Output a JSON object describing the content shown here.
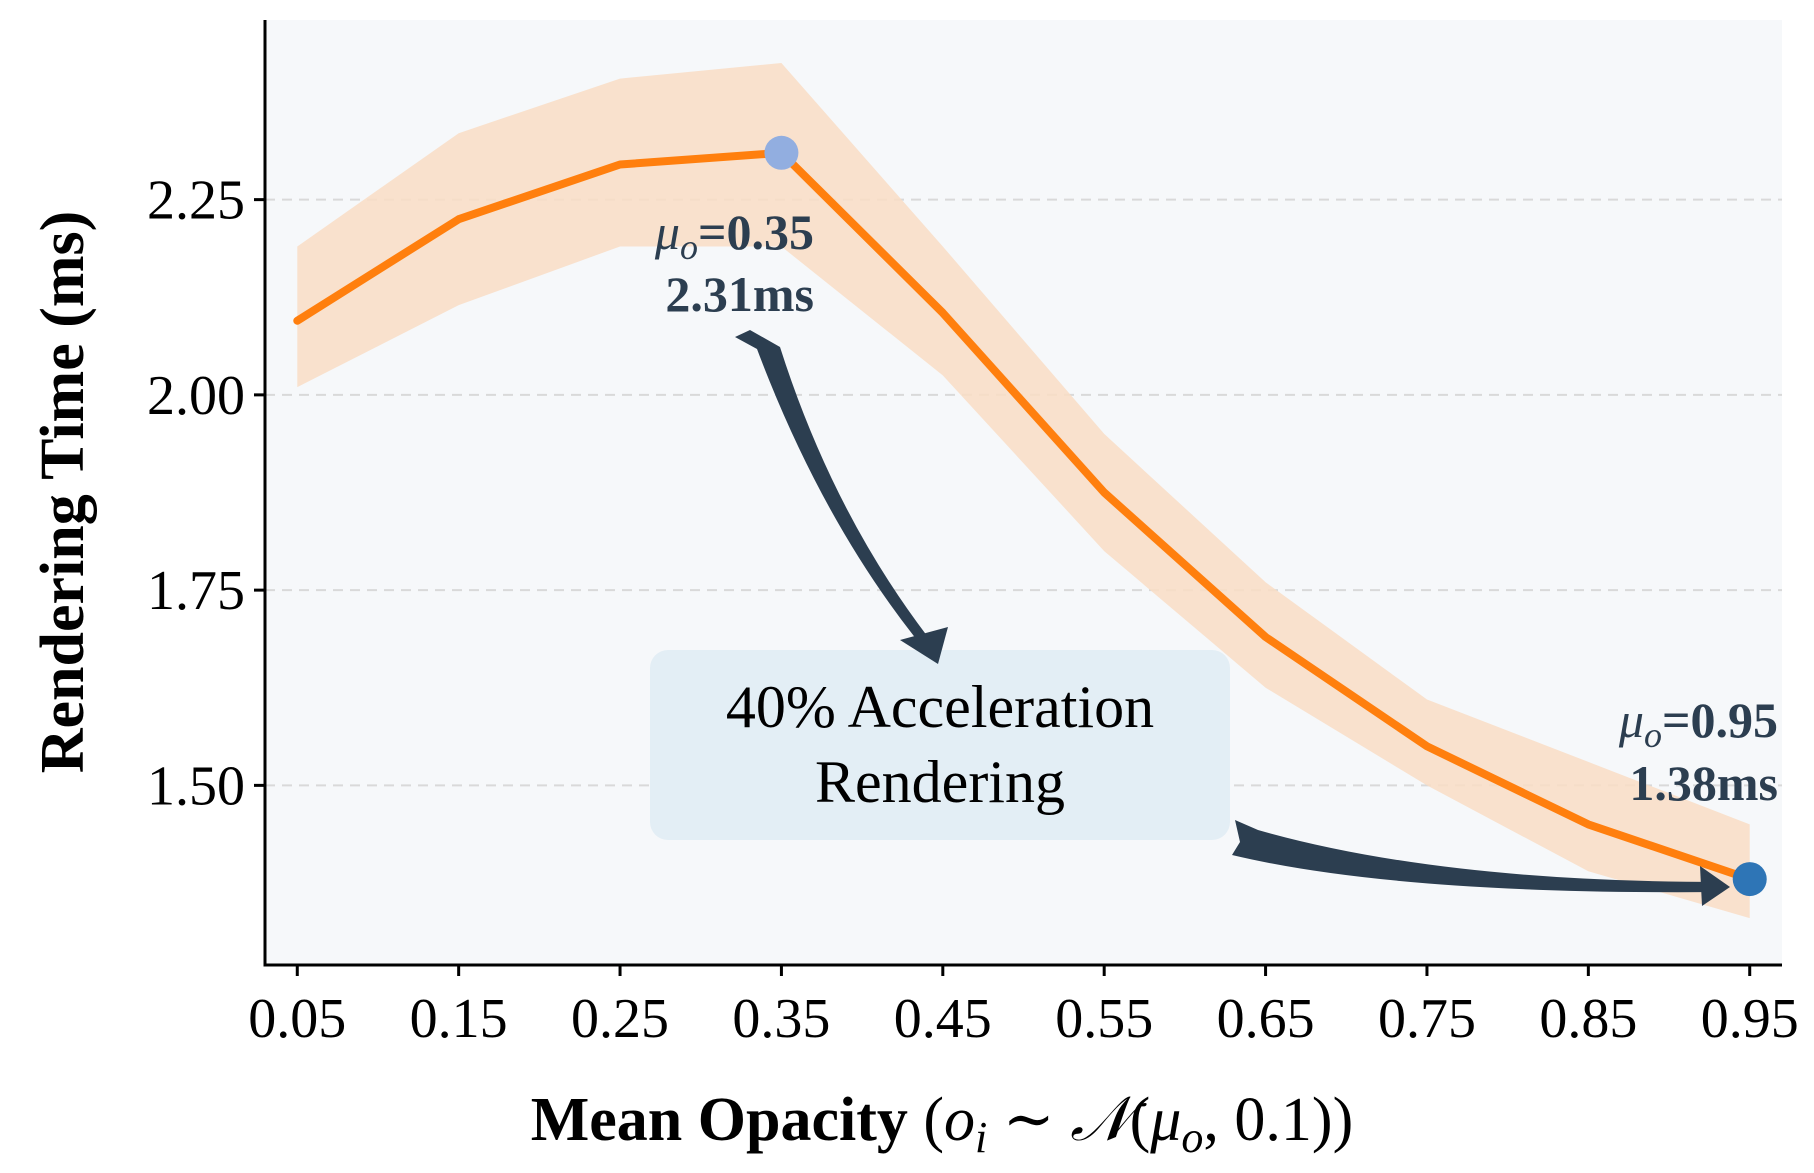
{
  "chart_data": {
    "type": "line",
    "xlabel": {
      "main": "Mean Opacity",
      "formula_open": "(",
      "var_o": "o",
      "sub_i": "i",
      "sim": " ∼ ",
      "normal": "𝒩",
      "paren_open": "(",
      "var_mu": "μ",
      "sub_o": "o",
      "rest": ", 0.1))"
    },
    "ylabel": "Rendering Time (ms)",
    "x": [
      0.05,
      0.15,
      0.25,
      0.35,
      0.45,
      0.55,
      0.65,
      0.75,
      0.85,
      0.95
    ],
    "x_tick_labels": [
      "0.05",
      "0.15",
      "0.25",
      "0.35",
      "0.45",
      "0.55",
      "0.65",
      "0.75",
      "0.85",
      "0.95"
    ],
    "y_ticks": [
      1.5,
      1.75,
      2.0,
      2.25
    ],
    "y_tick_labels": [
      "1.50",
      "1.75",
      "2.00",
      "2.25"
    ],
    "xlim": [
      0.03,
      0.97
    ],
    "ylim": [
      1.27,
      2.48
    ],
    "grid": "horizontal dashed",
    "series": [
      {
        "values": [
          2.095,
          2.225,
          2.295,
          2.31,
          2.105,
          1.875,
          1.69,
          1.55,
          1.45,
          1.38
        ],
        "upper": [
          2.19,
          2.335,
          2.405,
          2.425,
          2.19,
          1.95,
          1.76,
          1.61,
          1.53,
          1.45
        ],
        "lower": [
          2.01,
          2.115,
          2.19,
          2.19,
          2.025,
          1.8,
          1.625,
          1.5,
          1.39,
          1.33
        ],
        "color": "#ff7f0e",
        "band_color": "#f9ddc4"
      }
    ],
    "highlights": [
      {
        "x": 0.35,
        "y": 2.31,
        "color": "#92aee0"
      },
      {
        "x": 0.95,
        "y": 1.38,
        "color": "#2e75b6"
      }
    ]
  },
  "annotations": {
    "peak": {
      "mu": "μ",
      "sub": "o",
      "value_text": "=0.35",
      "time": "2.31ms"
    },
    "end": {
      "mu": "μ",
      "sub": "o",
      "value_text": "=0.95",
      "time": "1.38ms"
    },
    "box": {
      "line1": "40% Acceleration",
      "line2": "Rendering"
    }
  },
  "colors": {
    "plot_background": "#f6f8fa",
    "annotation_text": "#2c3e50",
    "arrow": "#2c3e50",
    "box_fill": "#e3eef5",
    "gridline": "#d9d9d9"
  }
}
